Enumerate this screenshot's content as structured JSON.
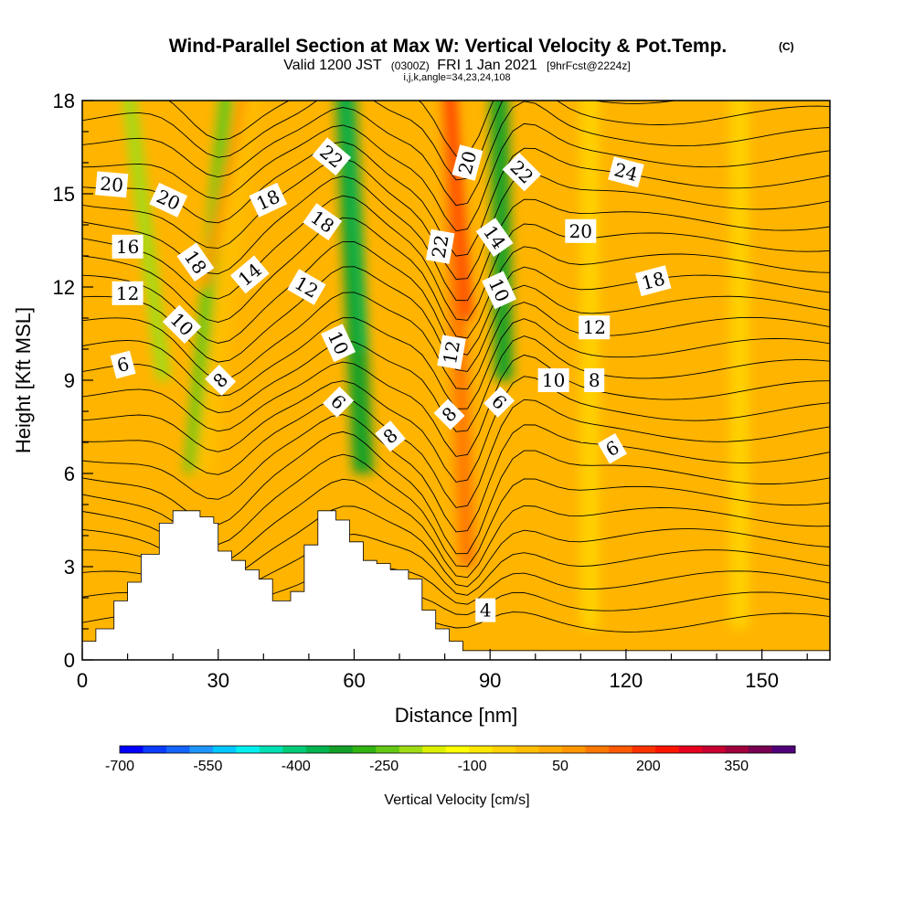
{
  "header": {
    "title": "Wind-Parallel Section at Max W: Vertical Velocity & Pot.Temp.",
    "copyright": "(C)",
    "valid_prefix": "Valid 1200 JST",
    "valid_zulu": "(0300Z)",
    "valid_date": "FRI 1 Jan 2021",
    "forecast": "[9hrFcst@2224z]",
    "indices": "i,j,k,angle=34,23,24,108"
  },
  "chart_data": {
    "type": "heatmap",
    "xlabel": "Distance [nm]",
    "ylabel": "Height [Kft MSL]",
    "xlim": [
      0,
      165
    ],
    "ylim": [
      0,
      18
    ],
    "x_ticks": [
      0,
      30,
      60,
      90,
      120,
      150
    ],
    "x_tick_labels": [
      "0",
      "30",
      "60",
      "90",
      "120",
      "150"
    ],
    "y_ticks": [
      0,
      3,
      6,
      9,
      12,
      15,
      18
    ],
    "y_tick_labels": [
      "0",
      "3",
      "6",
      "9",
      "12",
      "15",
      "18"
    ],
    "grid": false,
    "colorbar": {
      "label": "Vertical Velocity [cm/s]",
      "min": -700,
      "max": 450,
      "step": 50,
      "tick_values": [
        -700,
        -550,
        -400,
        -250,
        -100,
        50,
        200,
        350
      ],
      "tick_labels": [
        "-700",
        "-550",
        "-400",
        "-250",
        "-100",
        "50",
        "200",
        "350"
      ],
      "colors": [
        "#0000ff",
        "#0a3cff",
        "#1464ff",
        "#1e96ff",
        "#00c8ff",
        "#00f0f0",
        "#00e0b4",
        "#00cc78",
        "#00b450",
        "#14a028",
        "#32b414",
        "#64c814",
        "#a0dc14",
        "#dcf000",
        "#ffff00",
        "#ffe600",
        "#ffd200",
        "#ffbe00",
        "#ffaa00",
        "#ff9600",
        "#ff7800",
        "#ff5a00",
        "#ff3200",
        "#ff1400",
        "#e6001e",
        "#c80032",
        "#a0003c",
        "#780050",
        "#500078"
      ]
    },
    "w_bands": [
      {
        "x_base": 24,
        "x_top": 32,
        "width": 3.0,
        "value": -150,
        "z_from": 6
      },
      {
        "x_base": 27,
        "x_top": 37,
        "width": 4.5,
        "value": 180,
        "z_from": 6
      },
      {
        "x_base": 27,
        "x_top": 36,
        "width": 2.0,
        "value": 280,
        "z_from": 12
      },
      {
        "x_base": 62,
        "x_top": 58,
        "width": 4.5,
        "value": -220,
        "z_from": 6
      },
      {
        "x_base": 62,
        "x_top": 58,
        "width": 2.0,
        "value": -300,
        "z_from": 10
      },
      {
        "x_base": 85,
        "x_top": 81,
        "width": 3.5,
        "value": 300,
        "z_from": 3
      },
      {
        "x_base": 85,
        "x_top": 81,
        "width": 2.0,
        "value": 420,
        "z_from": 11
      },
      {
        "x_base": 93,
        "x_top": 92,
        "width": 4.0,
        "value": -230,
        "z_from": 9
      },
      {
        "x_base": 18,
        "x_top": 10,
        "width": 3.0,
        "value": -60,
        "z_from": 9
      },
      {
        "x_base": 112,
        "x_top": 112,
        "width": 4.0,
        "value": 120,
        "z_from": 1
      },
      {
        "x_base": 145,
        "x_top": 145,
        "width": 4.0,
        "value": 100,
        "z_from": 1
      }
    ],
    "terrain": {
      "x": [
        0,
        3,
        3,
        7,
        7,
        10,
        10,
        13,
        13,
        17,
        17,
        20,
        20,
        23,
        23,
        26,
        26,
        29,
        29,
        30,
        30,
        33,
        33,
        36,
        36,
        39,
        39,
        42,
        42,
        46,
        46,
        49,
        49,
        52,
        52,
        56,
        56,
        59,
        59,
        62,
        62,
        65,
        65,
        68,
        68,
        72,
        72,
        75,
        75,
        78,
        78,
        81,
        81,
        84,
        84,
        88,
        88,
        91,
        91,
        165
      ],
      "z": [
        0.6,
        0.6,
        1.0,
        1.0,
        1.9,
        1.9,
        2.5,
        2.5,
        3.4,
        3.4,
        4.4,
        4.4,
        4.8,
        4.8,
        4.8,
        4.8,
        4.6,
        4.6,
        4.4,
        4.4,
        3.5,
        3.5,
        3.2,
        3.2,
        2.9,
        2.9,
        2.6,
        2.6,
        1.9,
        1.9,
        2.2,
        2.2,
        3.7,
        3.7,
        4.8,
        4.8,
        4.5,
        4.5,
        3.8,
        3.8,
        3.2,
        3.2,
        3.1,
        3.1,
        2.9,
        2.9,
        2.6,
        2.6,
        1.6,
        1.6,
        1.0,
        1.0,
        0.6,
        0.6,
        0.3,
        0.3,
        0.3,
        0.3,
        0.3,
        0.3
      ]
    },
    "isentrope_labels": [
      {
        "text": "20",
        "x": 6.5,
        "z": 15.3,
        "angle": 5
      },
      {
        "text": "20",
        "x": 19,
        "z": 14.8,
        "angle": 25
      },
      {
        "text": "16",
        "x": 10,
        "z": 13.3,
        "angle": 0
      },
      {
        "text": "18",
        "x": 25,
        "z": 12.8,
        "angle": 55
      },
      {
        "text": "12",
        "x": 10,
        "z": 11.8,
        "angle": 0
      },
      {
        "text": "10",
        "x": 22,
        "z": 10.8,
        "angle": 45
      },
      {
        "text": "6",
        "x": 9,
        "z": 9.5,
        "angle": -15
      },
      {
        "text": "8",
        "x": 30.5,
        "z": 9.0,
        "angle": -45
      },
      {
        "text": "14",
        "x": 37,
        "z": 12.4,
        "angle": -40
      },
      {
        "text": "18",
        "x": 41,
        "z": 14.8,
        "angle": -25
      },
      {
        "text": "12",
        "x": 49.5,
        "z": 12.0,
        "angle": 30
      },
      {
        "text": "18",
        "x": 53,
        "z": 14.1,
        "angle": 35
      },
      {
        "text": "22",
        "x": 55,
        "z": 16.2,
        "angle": 40
      },
      {
        "text": "10",
        "x": 56.5,
        "z": 10.2,
        "angle": 65
      },
      {
        "text": "6",
        "x": 56.5,
        "z": 8.3,
        "angle": 45
      },
      {
        "text": "8",
        "x": 68,
        "z": 7.2,
        "angle": -40
      },
      {
        "text": "22",
        "x": 79,
        "z": 13.3,
        "angle": -80
      },
      {
        "text": "20",
        "x": 85,
        "z": 16.0,
        "angle": -75
      },
      {
        "text": "12",
        "x": 81.5,
        "z": 9.9,
        "angle": -80
      },
      {
        "text": "8",
        "x": 81,
        "z": 7.9,
        "angle": -45
      },
      {
        "text": "14",
        "x": 91,
        "z": 13.6,
        "angle": 55
      },
      {
        "text": "22",
        "x": 97,
        "z": 15.7,
        "angle": 45
      },
      {
        "text": "10",
        "x": 92,
        "z": 11.9,
        "angle": 65
      },
      {
        "text": "6",
        "x": 92,
        "z": 8.3,
        "angle": 45
      },
      {
        "text": "10",
        "x": 104,
        "z": 9.0,
        "angle": 0
      },
      {
        "text": "8",
        "x": 113,
        "z": 9.0,
        "angle": 0
      },
      {
        "text": "20",
        "x": 110,
        "z": 13.8,
        "angle": 0
      },
      {
        "text": "24",
        "x": 120,
        "z": 15.7,
        "angle": 15
      },
      {
        "text": "18",
        "x": 126,
        "z": 12.2,
        "angle": -15
      },
      {
        "text": "12",
        "x": 113,
        "z": 10.7,
        "angle": 0
      },
      {
        "text": "6",
        "x": 117,
        "z": 6.8,
        "angle": -30
      },
      {
        "text": "4",
        "x": 89,
        "z": 1.6,
        "angle": 0
      }
    ]
  }
}
